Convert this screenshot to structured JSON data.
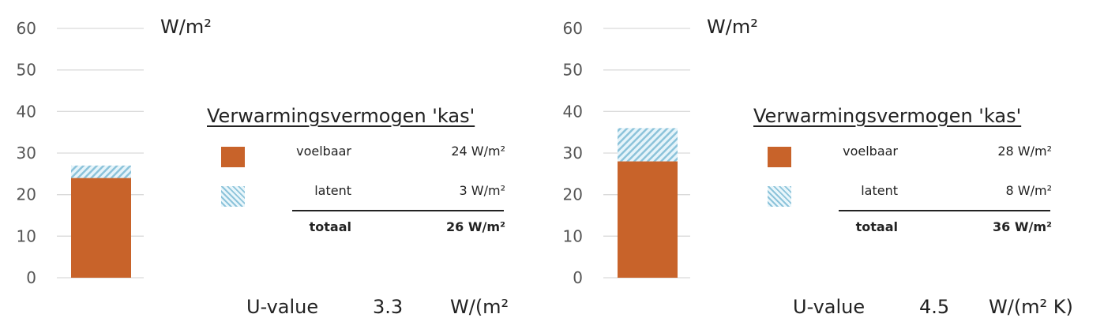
{
  "chart_data": [
    {
      "type": "bar",
      "stacked": true,
      "categories": [
        ""
      ],
      "series": [
        {
          "name": "voelbaar",
          "values": [
            24
          ],
          "color": "#c8632a",
          "pattern": "solid"
        },
        {
          "name": "latent",
          "values": [
            3
          ],
          "color": "#9fd1e6",
          "pattern": "hatch"
        }
      ],
      "ylim": [
        0,
        60
      ],
      "yticks": [
        "0",
        "10",
        "20",
        "30",
        "40",
        "50",
        "60"
      ],
      "grid": true,
      "unit_label": "W/m²",
      "legend": {
        "title": "Verwarmingsvermogen 'kas'",
        "rows": [
          {
            "label": "voelbaar",
            "value": "24 W/m²"
          },
          {
            "label": "latent",
            "value": "3 W/m²"
          }
        ],
        "total": {
          "label": "totaal",
          "value": "26 W/m²"
        }
      },
      "uvalue": {
        "label": "U-value",
        "value": "3.3",
        "unit": "W/(m²"
      }
    },
    {
      "type": "bar",
      "stacked": true,
      "categories": [
        ""
      ],
      "series": [
        {
          "name": "voelbaar",
          "values": [
            28
          ],
          "color": "#c8632a",
          "pattern": "solid"
        },
        {
          "name": "latent",
          "values": [
            8
          ],
          "color": "#9fd1e6",
          "pattern": "hatch"
        }
      ],
      "ylim": [
        0,
        60
      ],
      "yticks": [
        "0",
        "10",
        "20",
        "30",
        "40",
        "50",
        "60"
      ],
      "grid": true,
      "unit_label": "W/m²",
      "legend": {
        "title": "Verwarmingsvermogen 'kas'",
        "rows": [
          {
            "label": "voelbaar",
            "value": "28 W/m²"
          },
          {
            "label": "latent",
            "value": "8 W/m²"
          }
        ],
        "total": {
          "label": "totaal",
          "value": "36 W/m²"
        }
      },
      "uvalue": {
        "label": "U-value",
        "value": "4.5",
        "unit": "W/(m² K)"
      }
    }
  ]
}
